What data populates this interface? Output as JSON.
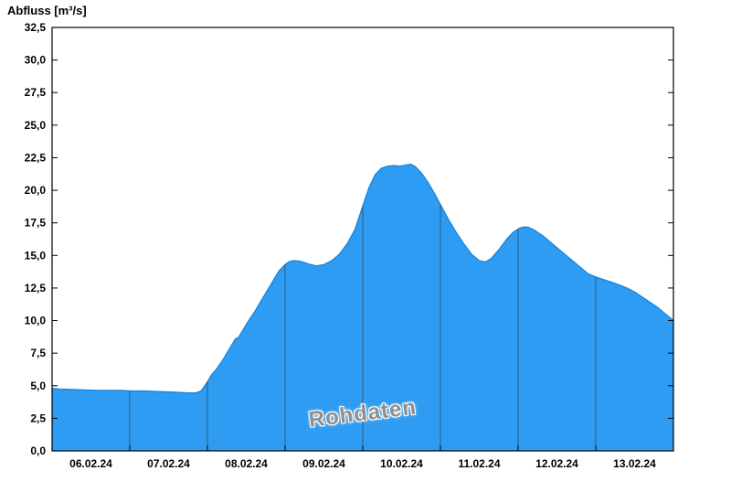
{
  "title": "Abfluss [m³/s]",
  "watermark": "Rohdaten",
  "colors": {
    "fill": "#2D9CF2",
    "line": "#1581D6",
    "grid": "#3b3b3b",
    "axis": "#000000",
    "label": "#000000",
    "watermark": "#8f8f8f"
  },
  "chart_data": {
    "type": "area",
    "title": "Abfluss [m³/s]",
    "ylabel": "Abfluss [m³/s]",
    "xlabel": "",
    "ylim": [
      0,
      32.5
    ],
    "ytick_step": 2.5,
    "ytick_labels": [
      "0,0",
      "2,5",
      "5,0",
      "7,5",
      "10,0",
      "12,5",
      "15,0",
      "17,5",
      "20,0",
      "22,5",
      "25,0",
      "27,5",
      "30,0",
      "32,5"
    ],
    "x_unit": "days since 06.02.24 00:00",
    "x_range_days": [
      0,
      8
    ],
    "day_labels": [
      "06.02.24",
      "07.02.24",
      "08.02.24",
      "09.02.24",
      "10.02.24",
      "11.02.24",
      "12.02.24",
      "13.02.24"
    ],
    "grid": "vertical-day-boundaries",
    "legend_position": "none",
    "series": [
      {
        "name": "Rohdaten",
        "x": [
          0.0,
          0.1,
          0.3,
          0.6,
          0.9,
          1.0,
          1.2,
          1.4,
          1.6,
          1.75,
          1.85,
          1.92,
          2.0,
          2.05,
          2.12,
          2.2,
          2.28,
          2.33,
          2.36,
          2.4,
          2.45,
          2.52,
          2.6,
          2.68,
          2.76,
          2.84,
          2.92,
          3.0,
          3.06,
          3.12,
          3.2,
          3.3,
          3.4,
          3.5,
          3.6,
          3.7,
          3.8,
          3.9,
          4.0,
          4.08,
          4.16,
          4.24,
          4.32,
          4.4,
          4.48,
          4.56,
          4.62,
          4.68,
          4.76,
          4.84,
          4.92,
          5.0,
          5.1,
          5.2,
          5.3,
          5.4,
          5.5,
          5.58,
          5.66,
          5.76,
          5.86,
          5.94,
          6.02,
          6.08,
          6.14,
          6.22,
          6.32,
          6.42,
          6.52,
          6.62,
          6.72,
          6.82,
          6.9,
          7.0,
          7.1,
          7.2,
          7.3,
          7.4,
          7.5,
          7.6,
          7.7,
          7.8,
          7.9,
          8.0
        ],
        "y": [
          4.8,
          4.75,
          4.7,
          4.65,
          4.65,
          4.6,
          4.6,
          4.55,
          4.5,
          4.45,
          4.45,
          4.6,
          5.3,
          5.8,
          6.3,
          7.0,
          7.8,
          8.3,
          8.6,
          8.7,
          9.2,
          9.9,
          10.6,
          11.4,
          12.2,
          13.0,
          13.8,
          14.3,
          14.55,
          14.6,
          14.55,
          14.35,
          14.2,
          14.3,
          14.6,
          15.1,
          15.9,
          17.0,
          18.8,
          20.2,
          21.2,
          21.7,
          21.85,
          21.9,
          21.85,
          21.95,
          22.0,
          21.8,
          21.3,
          20.6,
          19.8,
          18.9,
          17.8,
          16.8,
          15.9,
          15.1,
          14.6,
          14.5,
          14.8,
          15.5,
          16.3,
          16.8,
          17.1,
          17.2,
          17.15,
          16.9,
          16.5,
          16.0,
          15.5,
          15.0,
          14.5,
          14.0,
          13.6,
          13.35,
          13.15,
          12.95,
          12.75,
          12.5,
          12.2,
          11.8,
          11.4,
          11.0,
          10.5,
          10.0
        ]
      }
    ]
  }
}
